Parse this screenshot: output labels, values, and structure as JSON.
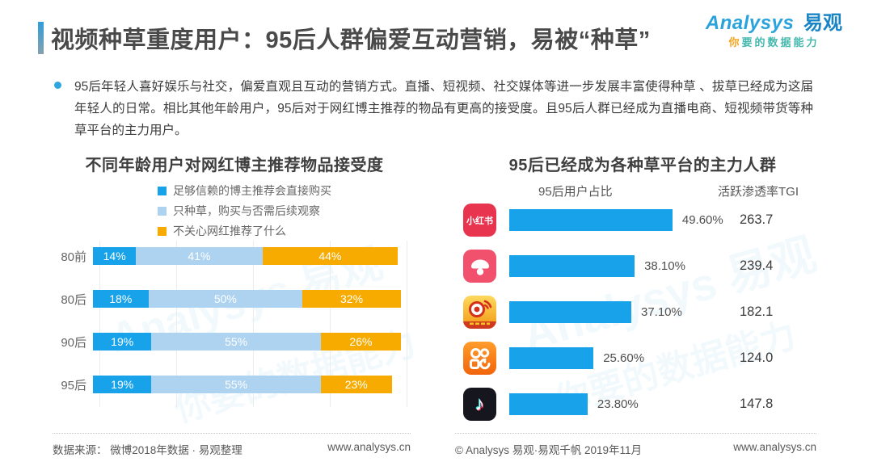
{
  "header": {
    "title": "视频种草重度用户：95后人群偏爱互动营销，易被“种草”",
    "logo": {
      "brand_en": "Analysys",
      "brand_cn": "易观",
      "tagline_lead": "你",
      "tagline_rest": "要的数据能力"
    }
  },
  "summary": "95后年轻人喜好娱乐与社交，偏爱直观且互动的营销方式。直播、短视频、社交媒体等进一步发展丰富使得种草 、拔草已经成为这届年轻人的日常。相比其他年龄用户，95后对于网红博主推荐的物品有更高的接受度。且95后人群已经成为直播电商、短视频带货等种草平台的主力用户。",
  "watermark": {
    "line1": "Analysys 易观",
    "line2": "你要的数据能力"
  },
  "chart_data": [
    {
      "type": "bar",
      "orientation": "horizontal",
      "stacked": true,
      "title": "不同年龄用户对网红博主推荐物品接受度",
      "categories": [
        "80前",
        "80后",
        "90后",
        "95后"
      ],
      "series": [
        {
          "name": "足够信赖的博主推荐会直接购买",
          "color": "#18a2e9",
          "values": [
            14,
            18,
            19,
            19
          ],
          "labels": [
            "14%",
            "18%",
            "19%",
            "19%"
          ]
        },
        {
          "name": "只种草，购买与否需后续观察",
          "color": "#aed3f1",
          "values": [
            41,
            50,
            55,
            55
          ],
          "labels": [
            "41%",
            "50%",
            "55%",
            "55%"
          ]
        },
        {
          "name": "不关心网红推荐了什么",
          "color": "#f7ab00",
          "values": [
            44,
            32,
            26,
            23
          ],
          "labels": [
            "44%",
            "32%",
            "26%",
            "23%"
          ]
        }
      ],
      "xlim": [
        0,
        100
      ],
      "unit": "%",
      "legend_position": "top",
      "grid": true
    },
    {
      "type": "bar",
      "orientation": "horizontal",
      "title": "95后已经成为各种草平台的主力人群",
      "columns": [
        "95后用户占比",
        "活跃渗透率TGI"
      ],
      "categories": [
        "小红书",
        "蘑菇街",
        "微博",
        "快手",
        "抖音"
      ],
      "values": [
        49.6,
        38.1,
        37.1,
        25.6,
        23.8
      ],
      "value_labels": [
        "49.60%",
        "38.10%",
        "37.10%",
        "25.60%",
        "23.80%"
      ],
      "tgi": [
        263.7,
        239.4,
        182.1,
        124.0,
        147.8
      ],
      "tgi_labels": [
        "263.7",
        "239.4",
        "182.1",
        "124.0",
        "147.8"
      ],
      "bar_color": "#18a2e9",
      "xlim": [
        0,
        50
      ],
      "grid": false
    }
  ],
  "footer": {
    "left": {
      "source": "数据来源： 微博2018年数据 · 易观整理",
      "url": "www.analysys.cn"
    },
    "right": {
      "source": "© Analysys 易观·易观千帆 2019年11月",
      "url": "www.analysys.cn"
    }
  }
}
